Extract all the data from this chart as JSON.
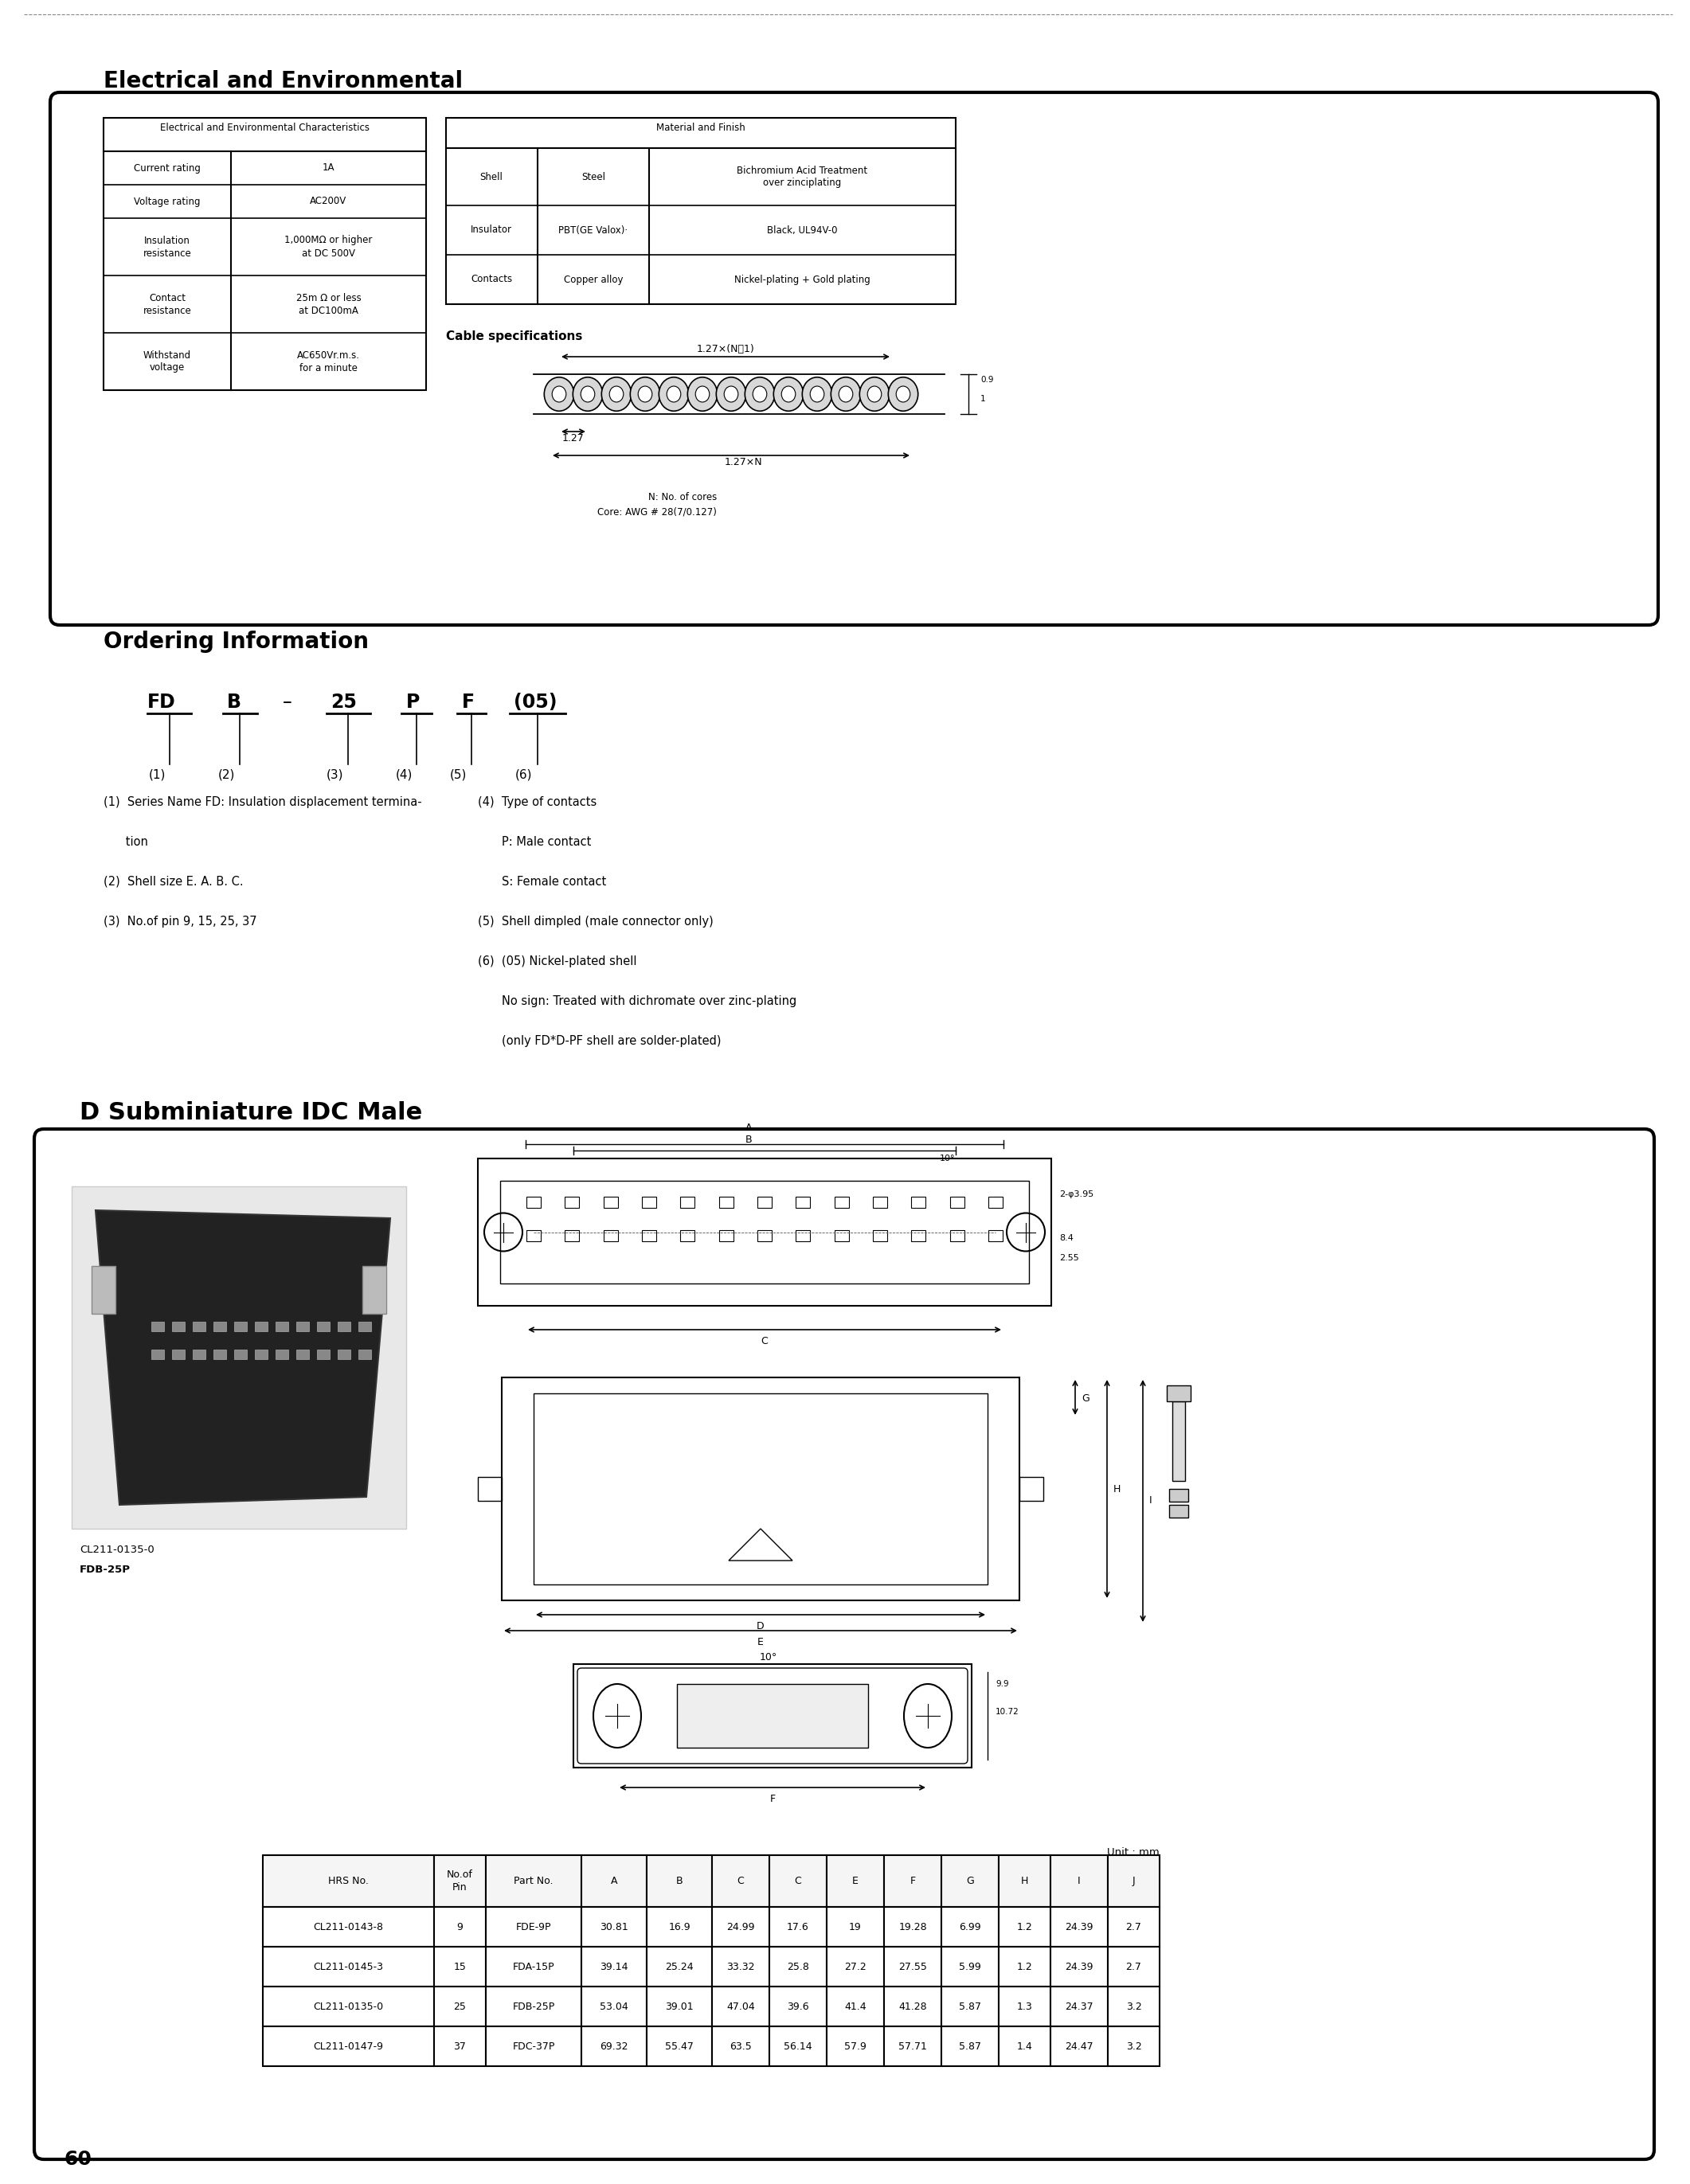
{
  "title_electrical": "Electrical and Environmental",
  "title_ordering": "Ordering Information",
  "title_dsubmini": "D Subminiature IDC Male",
  "page_number": "60",
  "bg_color": "#ffffff",
  "table1_header": "Electrical and Environmental Characteristics",
  "table1_rows": [
    [
      "Current rating",
      "1A"
    ],
    [
      "Voltage rating",
      "AC200V"
    ],
    [
      "Insulation\nresistance",
      "1,000MΩ or higher\nat DC 500V"
    ],
    [
      "Contact\nresistance",
      "25m Ω or less\nat DC100mA"
    ],
    [
      "Withstand\nvoltage",
      "AC650Vr.m.s.\nfor a minute"
    ]
  ],
  "table2_header": "Material and Finish",
  "table2_rows": [
    [
      "Shell",
      "Steel",
      "Bichromium Acid Treatment\nover zinciplating"
    ],
    [
      "Insulator",
      "PBT(GE Valox)·",
      "Black, UL94V-0"
    ],
    [
      "Contacts",
      "Copper alloy",
      "Nickel-plating + Gold plating"
    ]
  ],
  "cable_spec_label": "Cable specifications",
  "cable_spec_notes": [
    "N: No. of cores",
    "Core: AWG # 28(7/0.127)"
  ],
  "ordering_parts": [
    "FD",
    "B",
    "–",
    "25",
    "P",
    "F",
    "(05)"
  ],
  "ordering_notes_left": [
    "(1)  Series Name FD: Insulation displacement termina-  (4)  Type of contacts",
    "      tion",
    "(2)  Shell size E. A. B. C.",
    "(3)  No.of pin 9, 15, 25, 37"
  ],
  "ordering_col2_lines": [
    "P: Male contact",
    "S: Female contact",
    "(5)  Shell dimpled (male connector only)",
    "(6)  (05) Nickel-plated shell",
    "        No sign: Treated with dichromate over zinc-plating",
    "        (only FD*D-PF shell are solder-plated)"
  ],
  "dims_table_header": [
    "HRS No.",
    "No.of\nPin",
    "Part No.",
    "A",
    "B",
    "C",
    "C",
    "E",
    "F",
    "G",
    "H",
    "I",
    "J"
  ],
  "dims_table_rows": [
    [
      "CL211-0143-8",
      "9",
      "FDE-9P",
      "30.81",
      "16.9",
      "24.99",
      "17.6",
      "19",
      "19.28",
      "6.99",
      "1.2",
      "24.39",
      "2.7"
    ],
    [
      "CL211-0145-3",
      "15",
      "FDA-15P",
      "39.14",
      "25.24",
      "33.32",
      "25.8",
      "27.2",
      "27.55",
      "5.99",
      "1.2",
      "24.39",
      "2.7"
    ],
    [
      "CL211-0135-0",
      "25",
      "FDB-25P",
      "53.04",
      "39.01",
      "47.04",
      "39.6",
      "41.4",
      "41.28",
      "5.87",
      "1.3",
      "24.37",
      "3.2"
    ],
    [
      "CL211-0147-9",
      "37",
      "FDC-37P",
      "69.32",
      "55.47",
      "63.5",
      "56.14",
      "57.9",
      "57.71",
      "5.87",
      "1.4",
      "24.47",
      "3.2"
    ]
  ],
  "unit_label": "Unit : mm",
  "photo_label1": "CL211-0135-0",
  "photo_label2": "FDB-25P"
}
